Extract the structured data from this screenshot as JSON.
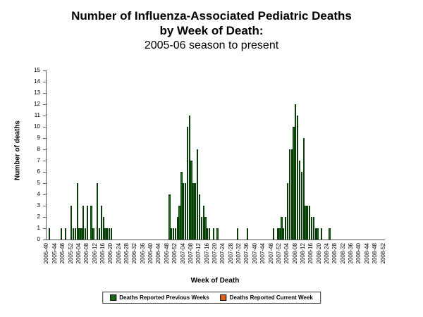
{
  "title": {
    "line1": "Number of Influenza-Associated Pediatric Deaths",
    "line2": "by Week of Death:",
    "line3": "2005-06 season to present"
  },
  "chart_data": {
    "type": "bar",
    "title": "Number of Influenza-Associated Pediatric Deaths by Week of Death: 2005-06 season to present",
    "xlabel": "Week of Death",
    "ylabel": "Number of deaths",
    "ylim": [
      0,
      15
    ],
    "yticks": [
      0,
      1,
      2,
      3,
      4,
      5,
      6,
      7,
      8,
      9,
      10,
      11,
      12,
      13,
      14,
      15
    ],
    "grid": false,
    "legend_position": "bottom",
    "x_range": {
      "start_week": "2005-40",
      "end_week": "2008-52",
      "bar_interval": "weekly",
      "label_every_n_weeks": 4
    },
    "x_tick_labels": [
      "2005-40",
      "2005-44",
      "2005-48",
      "2005-52",
      "2006-04",
      "2006-08",
      "2006-12",
      "2006-16",
      "2006-20",
      "2006-24",
      "2006-28",
      "2006-32",
      "2006-36",
      "2006-40",
      "2006-44",
      "2006-48",
      "2006-52",
      "2007-04",
      "2007-08",
      "2007-12",
      "2007-16",
      "2007-20",
      "2007-24",
      "2007-28",
      "2007-32",
      "2007-36",
      "2007-40",
      "2007-44",
      "2007-48",
      "2007-52",
      "2008-04",
      "2008-08",
      "2008-12",
      "2008-16",
      "2008-20",
      "2008-24",
      "2008-28",
      "2008-32",
      "2008-36",
      "2008-40",
      "2008-44",
      "2008-48",
      "2008-52"
    ],
    "series": [
      {
        "name": "Deaths Reported Previous Weeks",
        "color": "#166b16",
        "points": {
          "2005-41": 1,
          "2005-47": 1,
          "2005-49": 1,
          "2005-52": 3,
          "2006-01": 1,
          "2006-02": 1,
          "2006-03": 5,
          "2006-04": 1,
          "2006-05": 1,
          "2006-06": 3,
          "2006-07": 1,
          "2006-08": 3,
          "2006-10": 3,
          "2006-11": 1,
          "2006-13": 5,
          "2006-14": 1,
          "2006-15": 3,
          "2006-16": 2,
          "2006-17": 1,
          "2006-18": 1,
          "2006-19": 1,
          "2006-20": 1,
          "2006-49": 4,
          "2006-50": 1,
          "2006-51": 1,
          "2006-52": 1,
          "2007-01": 2,
          "2007-02": 3,
          "2007-03": 6,
          "2007-04": 5,
          "2007-05": 5,
          "2007-06": 10,
          "2007-07": 11,
          "2007-08": 7,
          "2007-09": 5,
          "2007-10": 5,
          "2007-11": 8,
          "2007-12": 4,
          "2007-13": 2,
          "2007-14": 3,
          "2007-15": 2,
          "2007-16": 1,
          "2007-17": 1,
          "2007-19": 1,
          "2007-21": 1,
          "2007-31": 1,
          "2007-36": 1,
          "2007-49": 1,
          "2007-51": 1,
          "2007-52": 1,
          "2008-01": 2,
          "2008-02": 1,
          "2008-03": 2,
          "2008-04": 5,
          "2008-05": 8,
          "2008-06": 8,
          "2008-07": 10,
          "2008-08": 12,
          "2008-09": 11,
          "2008-10": 7,
          "2008-11": 6,
          "2008-12": 9,
          "2008-13": 3,
          "2008-14": 3,
          "2008-15": 3,
          "2008-16": 2,
          "2008-17": 2,
          "2008-18": 1,
          "2008-19": 1,
          "2008-21": 1,
          "2008-25": 1
        }
      },
      {
        "name": "Deaths Reported Current Week",
        "color": "#e0621d",
        "points": {}
      }
    ]
  }
}
